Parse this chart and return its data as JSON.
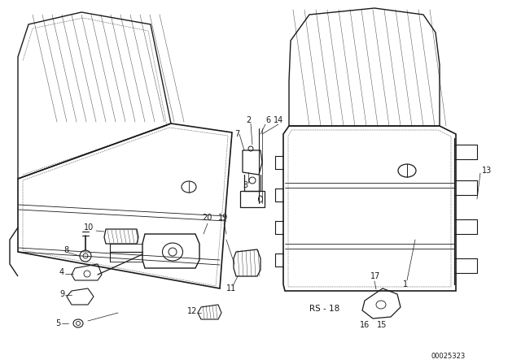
{
  "background_color": "#ffffff",
  "diagram_id": "00025323",
  "fig_width": 6.4,
  "fig_height": 4.48,
  "color": "#1a1a1a"
}
